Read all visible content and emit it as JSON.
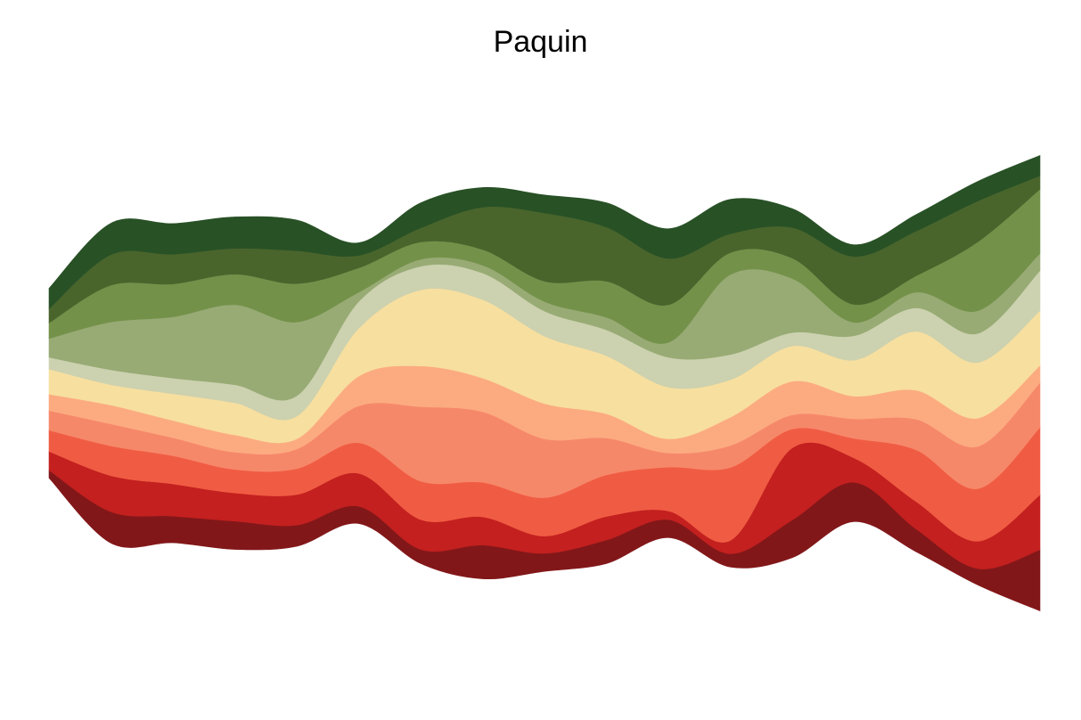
{
  "chart_data": {
    "type": "area",
    "subtype": "streamgraph",
    "title": "Paquin",
    "xlabel": "",
    "ylabel": "",
    "grid": false,
    "legend": "none",
    "axes_visible": false,
    "x": [
      0,
      1,
      2,
      3,
      4,
      5,
      6,
      7,
      8,
      9,
      10,
      11,
      12,
      13,
      14,
      15,
      16
    ],
    "series": [
      {
        "color": "#821719",
        "values": [
          1.0,
          4.0,
          3.4,
          3.6,
          2.7,
          2.2,
          1.8,
          4.3,
          2.3,
          3.0,
          2.3,
          1.7,
          4.8,
          5.0,
          2.9,
          2.1,
          7.8
        ]
      },
      {
        "color": "#c3201f",
        "values": [
          2.4,
          4.6,
          4.1,
          3.6,
          3.9,
          4.2,
          3.8,
          3.6,
          2.2,
          3.0,
          1.1,
          1.7,
          9.2,
          3.1,
          3.5,
          3.5,
          7.0
        ]
      },
      {
        "color": "#f05c43",
        "values": [
          2.7,
          3.8,
          3.6,
          3.0,
          3.3,
          3.9,
          4.9,
          4.4,
          4.9,
          5.3,
          5.6,
          9.3,
          2.4,
          2.5,
          6.6,
          6.7,
          8.6
        ]
      },
      {
        "color": "#f6886a",
        "values": [
          2.5,
          2.8,
          2.3,
          2.2,
          2.5,
          4.7,
          9.5,
          9.0,
          7.5,
          4.7,
          1.8,
          2.8,
          1.8,
          2.5,
          3.9,
          5.4,
          5.7
        ]
      },
      {
        "color": "#fcab80",
        "values": [
          2.1,
          2.4,
          2.2,
          2.2,
          1.3,
          3.8,
          5.2,
          4.3,
          4.5,
          3.1,
          1.8,
          3.6,
          4.3,
          2.9,
          3.7,
          3.6,
          2.2
        ]
      },
      {
        "color": "#f7df9f",
        "values": [
          3.2,
          2.6,
          3.4,
          4.1,
          2.9,
          6.1,
          9.7,
          10.0,
          8.6,
          7.4,
          6.6,
          4.8,
          4.5,
          4.6,
          7.5,
          7.1,
          7.0
        ]
      },
      {
        "color": "#ccd1af",
        "values": [
          1.5,
          1.9,
          2.0,
          2.3,
          2.6,
          3.4,
          3.0,
          3.4,
          3.2,
          3.3,
          3.8,
          3.2,
          1.7,
          3.1,
          3.0,
          3.7,
          5.1
        ]
      },
      {
        "color": "#98ab75",
        "values": [
          2.4,
          6.1,
          7.8,
          10.2,
          9.4,
          1.2,
          0.9,
          1.0,
          1.2,
          1.6,
          1.9,
          10.2,
          6.9,
          1.7,
          2.0,
          2.9,
          2.2
        ]
      },
      {
        "color": "#74914a",
        "values": [
          2.0,
          4.7,
          4.2,
          3.9,
          4.9,
          3.1,
          2.2,
          2.0,
          2.6,
          4.6,
          4.8,
          2.8,
          2.6,
          2.3,
          2.1,
          8.8,
          8.2
        ]
      },
      {
        "color": "#49652c",
        "values": [
          1.8,
          3.9,
          3.8,
          3.3,
          4.2,
          1.6,
          1.8,
          5.4,
          8.7,
          6.9,
          5.9,
          2.4,
          3.9,
          6.1,
          5.7,
          5.2,
          1.7
        ]
      },
      {
        "color": "#285126",
        "values": [
          2.6,
          4.0,
          3.9,
          4.0,
          3.9,
          1.6,
          3.2,
          2.5,
          2.3,
          3.1,
          3.8,
          4.4,
          2.4,
          1.5,
          2.1,
          2.5,
          2.6
        ]
      }
    ]
  }
}
